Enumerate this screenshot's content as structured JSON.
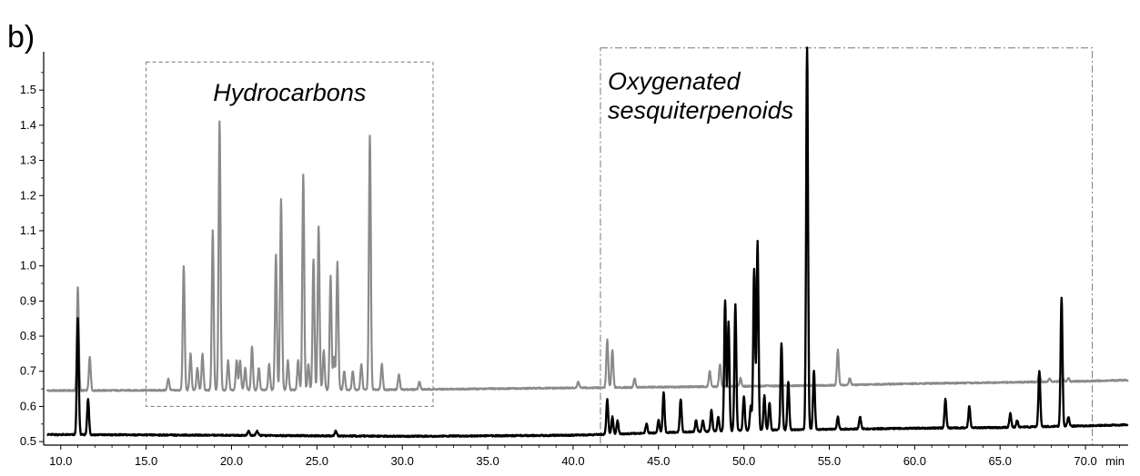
{
  "chart_data": {
    "type": "line",
    "panel_label": "b)",
    "xlabel": "min",
    "ylabel": "",
    "xlim": [
      9.0,
      72.5
    ],
    "ylim": [
      0.49,
      1.64
    ],
    "x_ticks": [
      "10.0",
      "15.0",
      "20.0",
      "25.0",
      "30.0",
      "35.0",
      "40.0",
      "45.0",
      "50.0",
      "55.0",
      "60.0",
      "65.0",
      "70.0"
    ],
    "y_ticks": [
      "0.5",
      "0.6",
      "0.7",
      "0.8",
      "0.9",
      "1.0",
      "1.1",
      "1.2",
      "1.3",
      "1.4",
      "1.5"
    ],
    "annotations": [
      {
        "text": "Hydrocarbons",
        "box_x": [
          15.0,
          31.8
        ],
        "box_y": [
          0.6,
          1.58
        ],
        "style": "dashed"
      },
      {
        "text": [
          "Oxygenated",
          "sesquiterpenoids"
        ],
        "box_x": [
          41.6,
          70.4
        ],
        "box_y": [
          0.49,
          1.62
        ],
        "style": "dash-dot"
      }
    ],
    "series": [
      {
        "color": "#8a8a8a",
        "baseline": [
          [
            9.2,
            0.645
          ],
          [
            30,
            0.648
          ],
          [
            45,
            0.655
          ],
          [
            55,
            0.66
          ],
          [
            60,
            0.665
          ],
          [
            65,
            0.668
          ],
          [
            70,
            0.672
          ],
          [
            72.5,
            0.675
          ]
        ],
        "peaks": [
          [
            11.0,
            0.94
          ],
          [
            11.7,
            0.74
          ],
          [
            16.3,
            0.68
          ],
          [
            17.2,
            1.0
          ],
          [
            17.6,
            0.75
          ],
          [
            18.0,
            0.71
          ],
          [
            18.3,
            0.75
          ],
          [
            18.9,
            1.1
          ],
          [
            19.3,
            1.41
          ],
          [
            19.8,
            0.73
          ],
          [
            20.3,
            0.73
          ],
          [
            20.5,
            0.73
          ],
          [
            20.8,
            0.71
          ],
          [
            21.2,
            0.77
          ],
          [
            21.6,
            0.71
          ],
          [
            22.2,
            0.72
          ],
          [
            22.6,
            1.03
          ],
          [
            22.9,
            1.19
          ],
          [
            23.3,
            0.73
          ],
          [
            23.9,
            0.73
          ],
          [
            24.2,
            1.26
          ],
          [
            24.5,
            0.72
          ],
          [
            24.8,
            1.02
          ],
          [
            25.1,
            1.11
          ],
          [
            25.4,
            0.76
          ],
          [
            25.8,
            0.97
          ],
          [
            26.0,
            0.74
          ],
          [
            26.2,
            1.01
          ],
          [
            26.6,
            0.7
          ],
          [
            27.1,
            0.7
          ],
          [
            27.6,
            0.72
          ],
          [
            28.1,
            1.37
          ],
          [
            28.8,
            0.72
          ],
          [
            29.8,
            0.69
          ],
          [
            31.0,
            0.67
          ],
          [
            40.3,
            0.67
          ],
          [
            42.0,
            0.79
          ],
          [
            42.3,
            0.76
          ],
          [
            43.6,
            0.68
          ],
          [
            48.0,
            0.7
          ],
          [
            48.6,
            0.72
          ],
          [
            49.8,
            0.68
          ],
          [
            55.5,
            0.76
          ],
          [
            56.2,
            0.68
          ],
          [
            67.3,
            0.69
          ],
          [
            67.9,
            0.68
          ],
          [
            68.6,
            0.71
          ],
          [
            69.0,
            0.68
          ]
        ]
      },
      {
        "color": "#000000",
        "baseline": [
          [
            9.2,
            0.52
          ],
          [
            20,
            0.518
          ],
          [
            30,
            0.515
          ],
          [
            40,
            0.518
          ],
          [
            45,
            0.525
          ],
          [
            50,
            0.532
          ],
          [
            55,
            0.535
          ],
          [
            60,
            0.538
          ],
          [
            65,
            0.54
          ],
          [
            70,
            0.545
          ],
          [
            72.5,
            0.548
          ]
        ],
        "peaks": [
          [
            11.0,
            0.85
          ],
          [
            11.6,
            0.62
          ],
          [
            21.0,
            0.53
          ],
          [
            21.5,
            0.53
          ],
          [
            26.1,
            0.53
          ],
          [
            42.0,
            0.62
          ],
          [
            42.3,
            0.57
          ],
          [
            42.6,
            0.56
          ],
          [
            44.3,
            0.55
          ],
          [
            45.0,
            0.56
          ],
          [
            45.3,
            0.64
          ],
          [
            46.3,
            0.62
          ],
          [
            47.2,
            0.56
          ],
          [
            47.6,
            0.56
          ],
          [
            48.1,
            0.59
          ],
          [
            48.5,
            0.57
          ],
          [
            48.9,
            0.9
          ],
          [
            49.1,
            0.84
          ],
          [
            49.5,
            0.89
          ],
          [
            50.0,
            0.63
          ],
          [
            50.4,
            0.6
          ],
          [
            50.6,
            0.99
          ],
          [
            50.8,
            1.07
          ],
          [
            51.2,
            0.63
          ],
          [
            51.5,
            0.61
          ],
          [
            52.2,
            0.78
          ],
          [
            52.6,
            0.67
          ],
          [
            53.7,
            1.62
          ],
          [
            54.1,
            0.7
          ],
          [
            55.5,
            0.57
          ],
          [
            56.8,
            0.57
          ],
          [
            61.8,
            0.62
          ],
          [
            63.2,
            0.6
          ],
          [
            65.6,
            0.58
          ],
          [
            66.0,
            0.56
          ],
          [
            67.3,
            0.7
          ],
          [
            68.6,
            0.91
          ],
          [
            69.0,
            0.57
          ]
        ]
      }
    ]
  }
}
